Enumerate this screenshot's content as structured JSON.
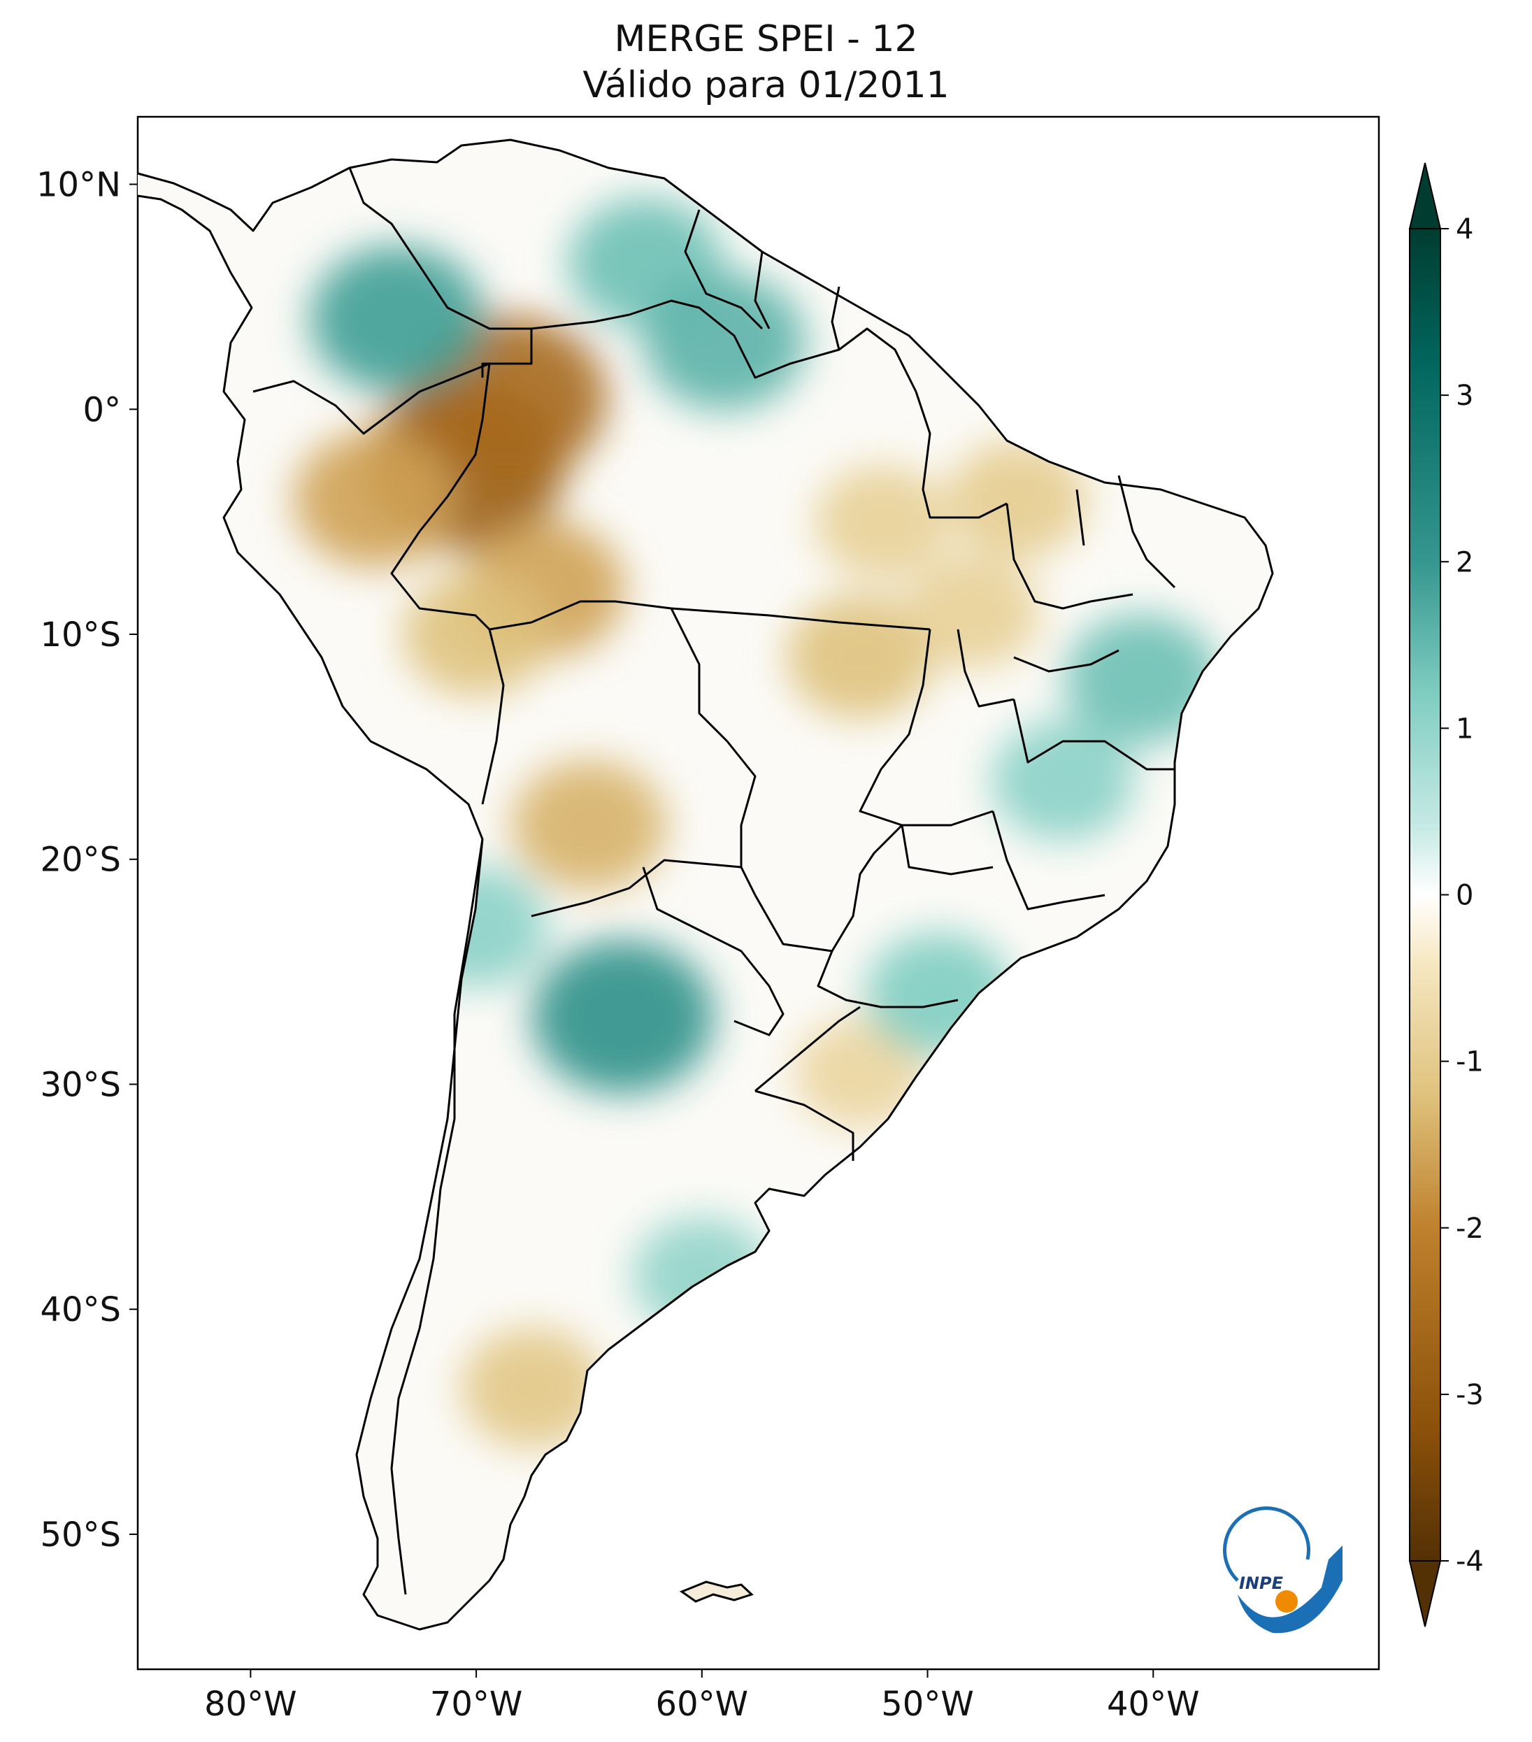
{
  "title": {
    "line1": "MERGE   SPEI - 12",
    "line2": "Válido para 01/2011"
  },
  "map": {
    "region": "South America",
    "projection": "PlateCarree",
    "lon_range": [
      -85,
      -30
    ],
    "lat_range": [
      -56,
      13
    ],
    "lon_ticks": [
      "80°W",
      "70°W",
      "60°W",
      "50°W",
      "40°W"
    ],
    "lon_tick_values": [
      -80,
      -70,
      -60,
      -50,
      -40
    ],
    "lat_ticks": [
      "10°N",
      "0°",
      "10°S",
      "20°S",
      "30°S",
      "40°S",
      "50°S"
    ],
    "lat_tick_values": [
      10,
      0,
      -10,
      -20,
      -30,
      -40,
      -50
    ],
    "border_color": "#000000",
    "background_color": "#ffffff"
  },
  "colorbar": {
    "ticks": [
      "4",
      "3",
      "2",
      "1",
      "0",
      "-1",
      "-2",
      "-3",
      "-4"
    ],
    "tick_values": [
      4,
      3,
      2,
      1,
      0,
      -1,
      -2,
      -3,
      -4
    ],
    "range": [
      -4,
      4
    ],
    "extend": "both",
    "colormap": "BrBG",
    "color_stops": [
      "#543005",
      "#8c510a",
      "#bf812d",
      "#dfc27d",
      "#f6e8c3",
      "#ffffff",
      "#c7eae5",
      "#80cdc1",
      "#35978f",
      "#01665e",
      "#003c30"
    ]
  },
  "logo": {
    "text": "INPE",
    "colors": [
      "#1a6fb5",
      "#f08a00"
    ]
  },
  "spei_anomalies": [
    {
      "name": "dry-amazonas-west",
      "lon": -70.5,
      "lat": -2.5,
      "value": -3.0
    },
    {
      "name": "dry-amazonas-north",
      "lon": -68.5,
      "lat": 0.5,
      "value": -2.8
    },
    {
      "name": "dry-peru-border",
      "lon": -74.5,
      "lat": -4.0,
      "value": -2.0
    },
    {
      "name": "dry-amazonas-south",
      "lon": -67.0,
      "lat": -8.0,
      "value": -2.0
    },
    {
      "name": "dry-acre",
      "lon": -70.0,
      "lat": -10.0,
      "value": -1.6
    },
    {
      "name": "dry-bolivia",
      "lon": -65.0,
      "lat": -18.5,
      "value": -1.8
    },
    {
      "name": "dry-para",
      "lon": -52.0,
      "lat": -5.0,
      "value": -1.3
    },
    {
      "name": "dry-mato-grosso",
      "lon": -53.0,
      "lat": -11.0,
      "value": -1.6
    },
    {
      "name": "dry-maranhao",
      "lon": -46.0,
      "lat": -4.0,
      "value": -1.4
    },
    {
      "name": "dry-tocantins",
      "lon": -48.0,
      "lat": -9.0,
      "value": -1.3
    },
    {
      "name": "dry-patagonia",
      "lon": -67.5,
      "lat": -43.5,
      "value": -1.5
    },
    {
      "name": "dry-rio-grande-sul",
      "lon": -53.0,
      "lat": -29.5,
      "value": -1.2
    },
    {
      "name": "wet-colombia",
      "lon": -73.5,
      "lat": 4.0,
      "value": 2.3
    },
    {
      "name": "wet-venezuela",
      "lon": -62.5,
      "lat": 6.5,
      "value": 1.8
    },
    {
      "name": "wet-guyana",
      "lon": -59.0,
      "lat": 3.0,
      "value": 2.0
    },
    {
      "name": "wet-northern-chile",
      "lon": -70.0,
      "lat": -23.0,
      "value": 1.5
    },
    {
      "name": "wet-argentina-north",
      "lon": -63.5,
      "lat": -27.0,
      "value": 2.5
    },
    {
      "name": "wet-bahia",
      "lon": -40.5,
      "lat": -12.0,
      "value": 1.8
    },
    {
      "name": "wet-minas-gerais",
      "lon": -44.0,
      "lat": -16.5,
      "value": 1.5
    },
    {
      "name": "wet-santa-catarina",
      "lon": -49.5,
      "lat": -26.0,
      "value": 1.6
    },
    {
      "name": "wet-buenos-aires-coast",
      "lon": -60.0,
      "lat": -38.5,
      "value": 1.4
    }
  ]
}
